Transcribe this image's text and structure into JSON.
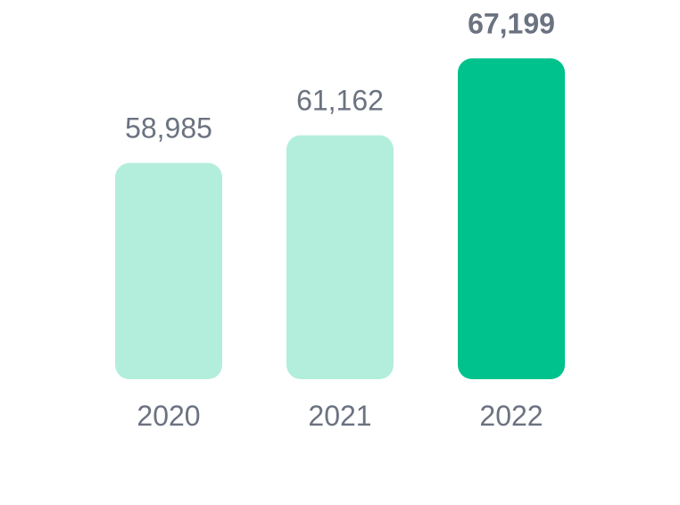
{
  "chart_data": {
    "type": "bar",
    "categories": [
      "2020",
      "2021",
      "2022"
    ],
    "values": [
      58985,
      61162,
      67199
    ],
    "value_labels": [
      "58,985",
      "61,162",
      "67,199"
    ],
    "colors": [
      "#b3eedd",
      "#b3eedd",
      "#00c28c"
    ],
    "label_weights": [
      "normal",
      "normal",
      "bold"
    ],
    "ylim": [
      42000,
      68000
    ],
    "grid": false
  }
}
